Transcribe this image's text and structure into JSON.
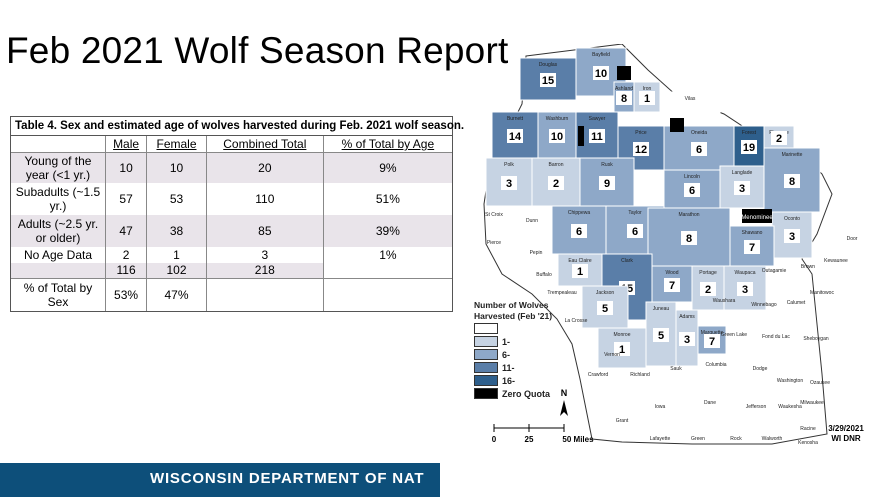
{
  "title": "Feb 2021 Wolf Season Report",
  "table": {
    "caption": "Table 4. Sex and estimated age of wolves harvested during Feb. 2021 wolf season.",
    "headers": [
      "",
      "Male",
      "Female",
      "Combined Total",
      "% of Total by Age"
    ],
    "rows": [
      {
        "label": "Young of the year (<1 yr.)",
        "male": "10",
        "female": "10",
        "total": "20",
        "pct": "9%"
      },
      {
        "label": "Subadults (~1.5 yr.)",
        "male": "57",
        "female": "53",
        "total": "110",
        "pct": "51%"
      },
      {
        "label": "Adults (~2.5 yr. or older)",
        "male": "47",
        "female": "38",
        "total": "85",
        "pct": "39%"
      },
      {
        "label": "No Age Data",
        "male": "2",
        "female": "1",
        "total": "3",
        "pct": "1%"
      },
      {
        "label": "",
        "male": "116",
        "female": "102",
        "total": "218",
        "pct": ""
      },
      {
        "label": "% of Total by Sex",
        "male": "53%",
        "female": "47%",
        "total": "",
        "pct": ""
      }
    ]
  },
  "legend": {
    "title": "Number of Wolves Harvested (Feb '21)",
    "items": [
      {
        "label": "",
        "color": "#ffffff"
      },
      {
        "label": "1-",
        "color": "#c6d3e3"
      },
      {
        "label": "6-",
        "color": "#8ea8c8"
      },
      {
        "label": "11-",
        "color": "#5a7ea8"
      },
      {
        "label": "16-",
        "color": "#2e5f8c"
      },
      {
        "label": "Zero Quota",
        "color": "#000000"
      }
    ]
  },
  "map": {
    "counties": [
      {
        "name": "Douglas",
        "count": "15",
        "color": "#5a7ea8"
      },
      {
        "name": "Bayfield",
        "count": "10",
        "color": "#8ea8c8"
      },
      {
        "name": "Ashland",
        "count": "8",
        "color": "#8ea8c8"
      },
      {
        "name": "Iron",
        "count": "1",
        "color": "#c6d3e3"
      },
      {
        "name": "Vilas",
        "count": "",
        "color": "#ffffff"
      },
      {
        "name": "Burnett",
        "count": "14",
        "color": "#5a7ea8"
      },
      {
        "name": "Washburn",
        "count": "10",
        "color": "#8ea8c8"
      },
      {
        "name": "Sawyer",
        "count": "11",
        "color": "#5a7ea8"
      },
      {
        "name": "Price",
        "count": "12",
        "color": "#5a7ea8"
      },
      {
        "name": "Oneida",
        "count": "6",
        "color": "#8ea8c8"
      },
      {
        "name": "Forest",
        "count": "19",
        "color": "#2e5f8c"
      },
      {
        "name": "Florence",
        "count": "2",
        "color": "#c6d3e3"
      },
      {
        "name": "Marinette",
        "count": "8",
        "color": "#8ea8c8"
      },
      {
        "name": "Polk",
        "count": "3",
        "color": "#c6d3e3"
      },
      {
        "name": "Barron",
        "count": "2",
        "color": "#c6d3e3"
      },
      {
        "name": "Rusk",
        "count": "9",
        "color": "#8ea8c8"
      },
      {
        "name": "Lincoln",
        "count": "6",
        "color": "#8ea8c8"
      },
      {
        "name": "Langlade",
        "count": "3",
        "color": "#c6d3e3"
      },
      {
        "name": "Oconto",
        "count": "3",
        "color": "#c6d3e3"
      },
      {
        "name": "Chippewa",
        "count": "6",
        "color": "#8ea8c8"
      },
      {
        "name": "Taylor",
        "count": "6",
        "color": "#8ea8c8"
      },
      {
        "name": "Marathon",
        "count": "8",
        "color": "#8ea8c8"
      },
      {
        "name": "Shawano",
        "count": "7",
        "color": "#8ea8c8"
      },
      {
        "name": "Eau Claire",
        "count": "1",
        "color": "#c6d3e3"
      },
      {
        "name": "Clark",
        "count": "15",
        "color": "#5a7ea8"
      },
      {
        "name": "Wood",
        "count": "7",
        "color": "#8ea8c8"
      },
      {
        "name": "Portage",
        "count": "2",
        "color": "#c6d3e3"
      },
      {
        "name": "Waupaca",
        "count": "3",
        "color": "#c6d3e3"
      },
      {
        "name": "Jackson",
        "count": "5",
        "color": "#c6d3e3"
      },
      {
        "name": "Monroe",
        "count": "1",
        "color": "#c6d3e3"
      },
      {
        "name": "Juneau",
        "count": "5",
        "color": "#c6d3e3"
      },
      {
        "name": "Adams",
        "count": "3",
        "color": "#c6d3e3"
      },
      {
        "name": "Marquette",
        "count": "7",
        "color": "#8ea8c8"
      }
    ],
    "labels": [
      "St Croix",
      "Dunn",
      "Pierce",
      "Pepin",
      "Buffalo",
      "Trempealeau",
      "La Crosse",
      "Vernon",
      "Crawford",
      "Richland",
      "Sauk",
      "Columbia",
      "Dodge",
      "Grant",
      "Iowa",
      "Dane",
      "Jefferson",
      "Waukesha",
      "Lafayette",
      "Green",
      "Rock",
      "Walworth",
      "Racine",
      "Kenosha",
      "Waushara",
      "Winnebago",
      "Calumet",
      "Manitowoc",
      "Green Lake",
      "Fond du Lac",
      "Sheboygan",
      "Outagamie",
      "Brown",
      "Kewaunee",
      "Door",
      "Ozaukee",
      "Washington",
      "Milwaukee",
      "Menominee"
    ],
    "scale": {
      "zero": "0",
      "mid": "25",
      "end": "50 Miles"
    },
    "north": "N",
    "date": "3/29/2021",
    "source": "WI DNR"
  },
  "footer": "WISCONSIN DEPARTMENT OF NAT"
}
